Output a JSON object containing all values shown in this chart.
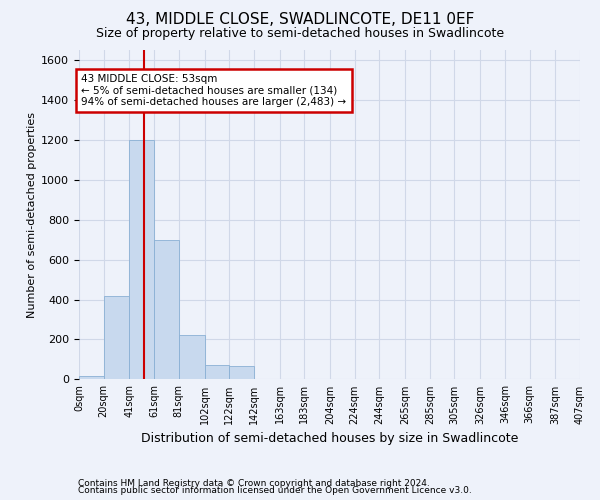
{
  "title": "43, MIDDLE CLOSE, SWADLINCOTE, DE11 0EF",
  "subtitle": "Size of property relative to semi-detached houses in Swadlincote",
  "xlabel": "Distribution of semi-detached houses by size in Swadlincote",
  "ylabel": "Number of semi-detached properties",
  "footnote1": "Contains HM Land Registry data © Crown copyright and database right 2024.",
  "footnote2": "Contains public sector information licensed under the Open Government Licence v3.0.",
  "property_size": 53,
  "annotation_title": "43 MIDDLE CLOSE: 53sqm",
  "annotation_line1": "← 5% of semi-detached houses are smaller (134)",
  "annotation_line2": "94% of semi-detached houses are larger (2,483) →",
  "bar_color": "#c8d9ee",
  "bar_edge_color": "#8ab0d4",
  "vline_color": "#cc0000",
  "annotation_box_color": "#cc0000",
  "grid_color": "#d0d8e8",
  "background_color": "#eef2fa",
  "bin_edges": [
    0,
    20,
    41,
    61,
    81,
    102,
    122,
    142,
    163,
    183,
    204,
    224,
    244,
    265,
    285,
    305,
    326,
    346,
    366,
    387,
    407
  ],
  "bin_labels": [
    "0sqm",
    "20sqm",
    "41sqm",
    "61sqm",
    "81sqm",
    "102sqm",
    "122sqm",
    "142sqm",
    "163sqm",
    "183sqm",
    "204sqm",
    "224sqm",
    "244sqm",
    "265sqm",
    "285sqm",
    "305sqm",
    "326sqm",
    "346sqm",
    "366sqm",
    "387sqm",
    "407sqm"
  ],
  "counts": [
    15,
    420,
    1200,
    700,
    225,
    70,
    65,
    2,
    0,
    0,
    0,
    0,
    0,
    0,
    0,
    0,
    0,
    0,
    0,
    0
  ],
  "ylim": [
    0,
    1650
  ],
  "yticks": [
    0,
    200,
    400,
    600,
    800,
    1000,
    1200,
    1400,
    1600
  ],
  "title_fontsize": 11,
  "subtitle_fontsize": 9,
  "ylabel_fontsize": 8,
  "xlabel_fontsize": 9,
  "footnote_fontsize": 6.5,
  "tick_fontsize": 8,
  "xtick_fontsize": 7
}
